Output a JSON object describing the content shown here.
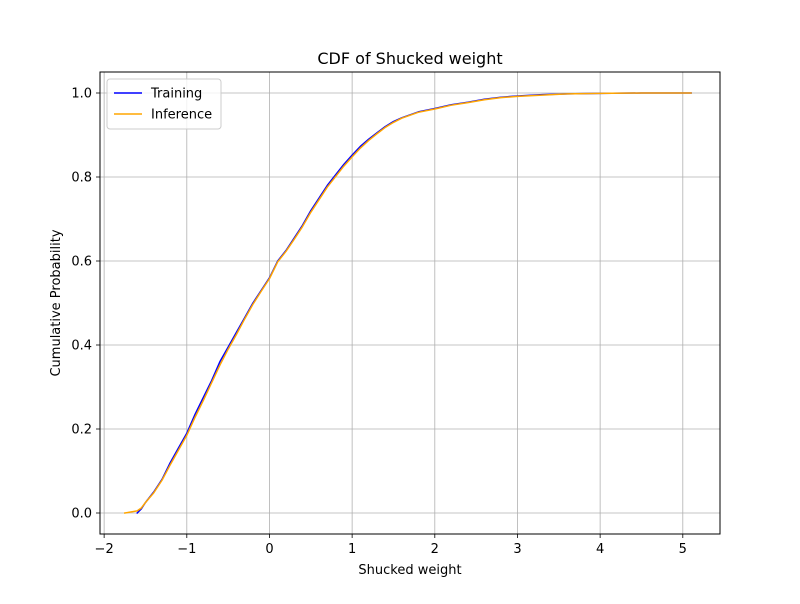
{
  "chart_data": {
    "type": "line",
    "title": "CDF of Shucked weight",
    "xlabel": "Shucked weight",
    "ylabel": "Cumulative Probability",
    "xlim": [
      -2.05,
      5.45
    ],
    "ylim": [
      -0.05,
      1.05
    ],
    "xticks": [
      -2,
      -1,
      0,
      1,
      2,
      3,
      4,
      5
    ],
    "xtick_labels": [
      "−2",
      "−1",
      "0",
      "1",
      "2",
      "3",
      "4",
      "5"
    ],
    "yticks": [
      0.0,
      0.2,
      0.4,
      0.6,
      0.8,
      1.0
    ],
    "ytick_labels": [
      "0.0",
      "0.2",
      "0.4",
      "0.6",
      "0.8",
      "1.0"
    ],
    "grid": true,
    "legend_position": "top-left",
    "series": [
      {
        "name": "Training",
        "color": "#0000ff",
        "x": [
          -1.6,
          -1.55,
          -1.5,
          -1.4,
          -1.3,
          -1.2,
          -1.1,
          -1.0,
          -0.9,
          -0.8,
          -0.7,
          -0.6,
          -0.5,
          -0.4,
          -0.3,
          -0.2,
          -0.1,
          0.0,
          0.1,
          0.2,
          0.3,
          0.4,
          0.5,
          0.6,
          0.7,
          0.8,
          0.9,
          1.0,
          1.1,
          1.2,
          1.3,
          1.4,
          1.5,
          1.6,
          1.8,
          2.0,
          2.2,
          2.4,
          2.6,
          2.8,
          3.0,
          3.3,
          3.6,
          4.0,
          4.5,
          5.1
        ],
        "y": [
          0.0,
          0.01,
          0.025,
          0.05,
          0.08,
          0.12,
          0.155,
          0.19,
          0.235,
          0.275,
          0.315,
          0.36,
          0.395,
          0.43,
          0.465,
          0.5,
          0.53,
          0.56,
          0.6,
          0.625,
          0.655,
          0.685,
          0.72,
          0.75,
          0.78,
          0.805,
          0.83,
          0.852,
          0.873,
          0.89,
          0.905,
          0.92,
          0.932,
          0.941,
          0.955,
          0.963,
          0.972,
          0.978,
          0.985,
          0.99,
          0.993,
          0.996,
          0.998,
          0.999,
          1.0,
          1.0
        ]
      },
      {
        "name": "Inference",
        "color": "#ffa500",
        "x": [
          -1.75,
          -1.6,
          -1.55,
          -1.5,
          -1.4,
          -1.3,
          -1.2,
          -1.1,
          -1.0,
          -0.9,
          -0.8,
          -0.7,
          -0.6,
          -0.5,
          -0.4,
          -0.3,
          -0.2,
          -0.1,
          0.0,
          0.1,
          0.2,
          0.3,
          0.4,
          0.5,
          0.6,
          0.7,
          0.8,
          0.9,
          1.0,
          1.1,
          1.2,
          1.3,
          1.4,
          1.5,
          1.6,
          1.8,
          2.0,
          2.2,
          2.4,
          2.6,
          2.8,
          3.0,
          3.3,
          3.6,
          4.0,
          4.5,
          5.1
        ],
        "y": [
          0.0,
          0.005,
          0.012,
          0.025,
          0.048,
          0.078,
          0.115,
          0.15,
          0.185,
          0.228,
          0.268,
          0.31,
          0.352,
          0.39,
          0.425,
          0.462,
          0.497,
          0.528,
          0.558,
          0.598,
          0.623,
          0.652,
          0.682,
          0.716,
          0.746,
          0.776,
          0.801,
          0.826,
          0.848,
          0.869,
          0.887,
          0.903,
          0.918,
          0.93,
          0.94,
          0.954,
          0.962,
          0.971,
          0.977,
          0.984,
          0.989,
          0.992,
          0.995,
          0.998,
          0.999,
          1.0,
          1.0
        ]
      }
    ]
  }
}
